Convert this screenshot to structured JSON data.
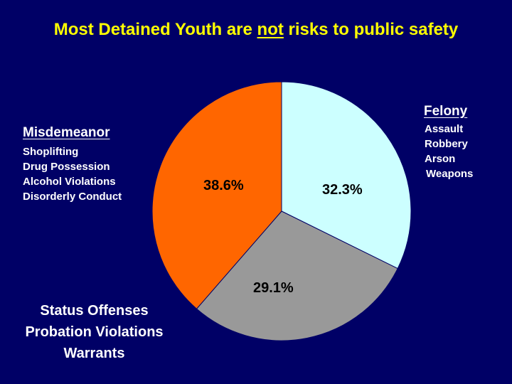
{
  "title": {
    "pre": "Most Detained Youth are ",
    "underlined": "not",
    "post": " risks to public safety"
  },
  "colors": {
    "background": "#000066",
    "title": "#ffff00",
    "misdemeanor": "#ff6600",
    "felony": "#ccffff",
    "status": "#999999"
  },
  "chart_data": {
    "type": "pie",
    "slices": [
      {
        "label": "Felony",
        "value": 32.3,
        "display": "32.3%",
        "color": "#ccffff"
      },
      {
        "label": "Status Offenses / Probation Violations / Warrants",
        "value": 29.1,
        "display": "29.1%",
        "color": "#999999"
      },
      {
        "label": "Misdemeanor",
        "value": 38.6,
        "display": "38.6%",
        "color": "#ff6600"
      }
    ],
    "start_angle_deg": 0,
    "direction": "clockwise from top"
  },
  "annotations": {
    "felony": {
      "heading": "Felony",
      "items": [
        "Assault",
        "Robbery",
        "Arson",
        "Weapons"
      ]
    },
    "misdemeanor": {
      "heading": "Misdemeanor",
      "items": [
        "Shoplifting",
        "Drug Possession",
        "Alcohol Violations",
        "Disorderly Conduct"
      ]
    },
    "status": {
      "items": [
        "Status Offenses",
        "Probation Violations",
        "Warrants"
      ]
    }
  }
}
